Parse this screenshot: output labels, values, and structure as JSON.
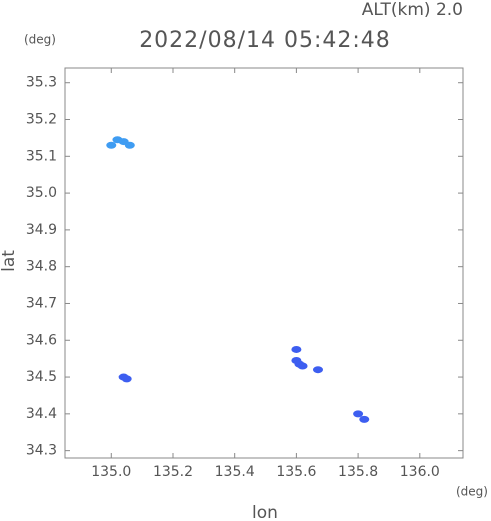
{
  "chart_data": {
    "type": "scatter",
    "alt_label": "ALT(km) 2.0",
    "title": "2022/08/14 05:42:48",
    "y_unit": "(deg)",
    "x_unit": "(deg)",
    "xlabel": "lon",
    "ylabel": "lat",
    "xlim": [
      134.85,
      136.14
    ],
    "ylim": [
      34.28,
      35.34
    ],
    "xticks": [
      {
        "value": 135,
        "label": "135.0"
      },
      135.2,
      135.4,
      135.6,
      135.8,
      {
        "value": 136,
        "label": "136.0"
      }
    ],
    "yticks": [
      34.3,
      34.4,
      34.5,
      34.6,
      34.7,
      34.8,
      34.9,
      {
        "value": 35,
        "label": "35.0"
      },
      35.1,
      35.2,
      35.3
    ],
    "series": [
      {
        "color": "#3f9cf2",
        "x": [
          135.0,
          135.02,
          135.04,
          135.06
        ],
        "y": [
          35.13,
          35.145,
          35.14,
          35.13
        ]
      },
      {
        "color": "#3d5ef0",
        "x": [
          135.04,
          135.05,
          135.6,
          135.61,
          135.62,
          135.6,
          135.67,
          135.8,
          135.82
        ],
        "y": [
          34.5,
          34.495,
          34.545,
          34.535,
          34.53,
          34.575,
          34.52,
          34.4,
          34.385
        ]
      }
    ]
  }
}
